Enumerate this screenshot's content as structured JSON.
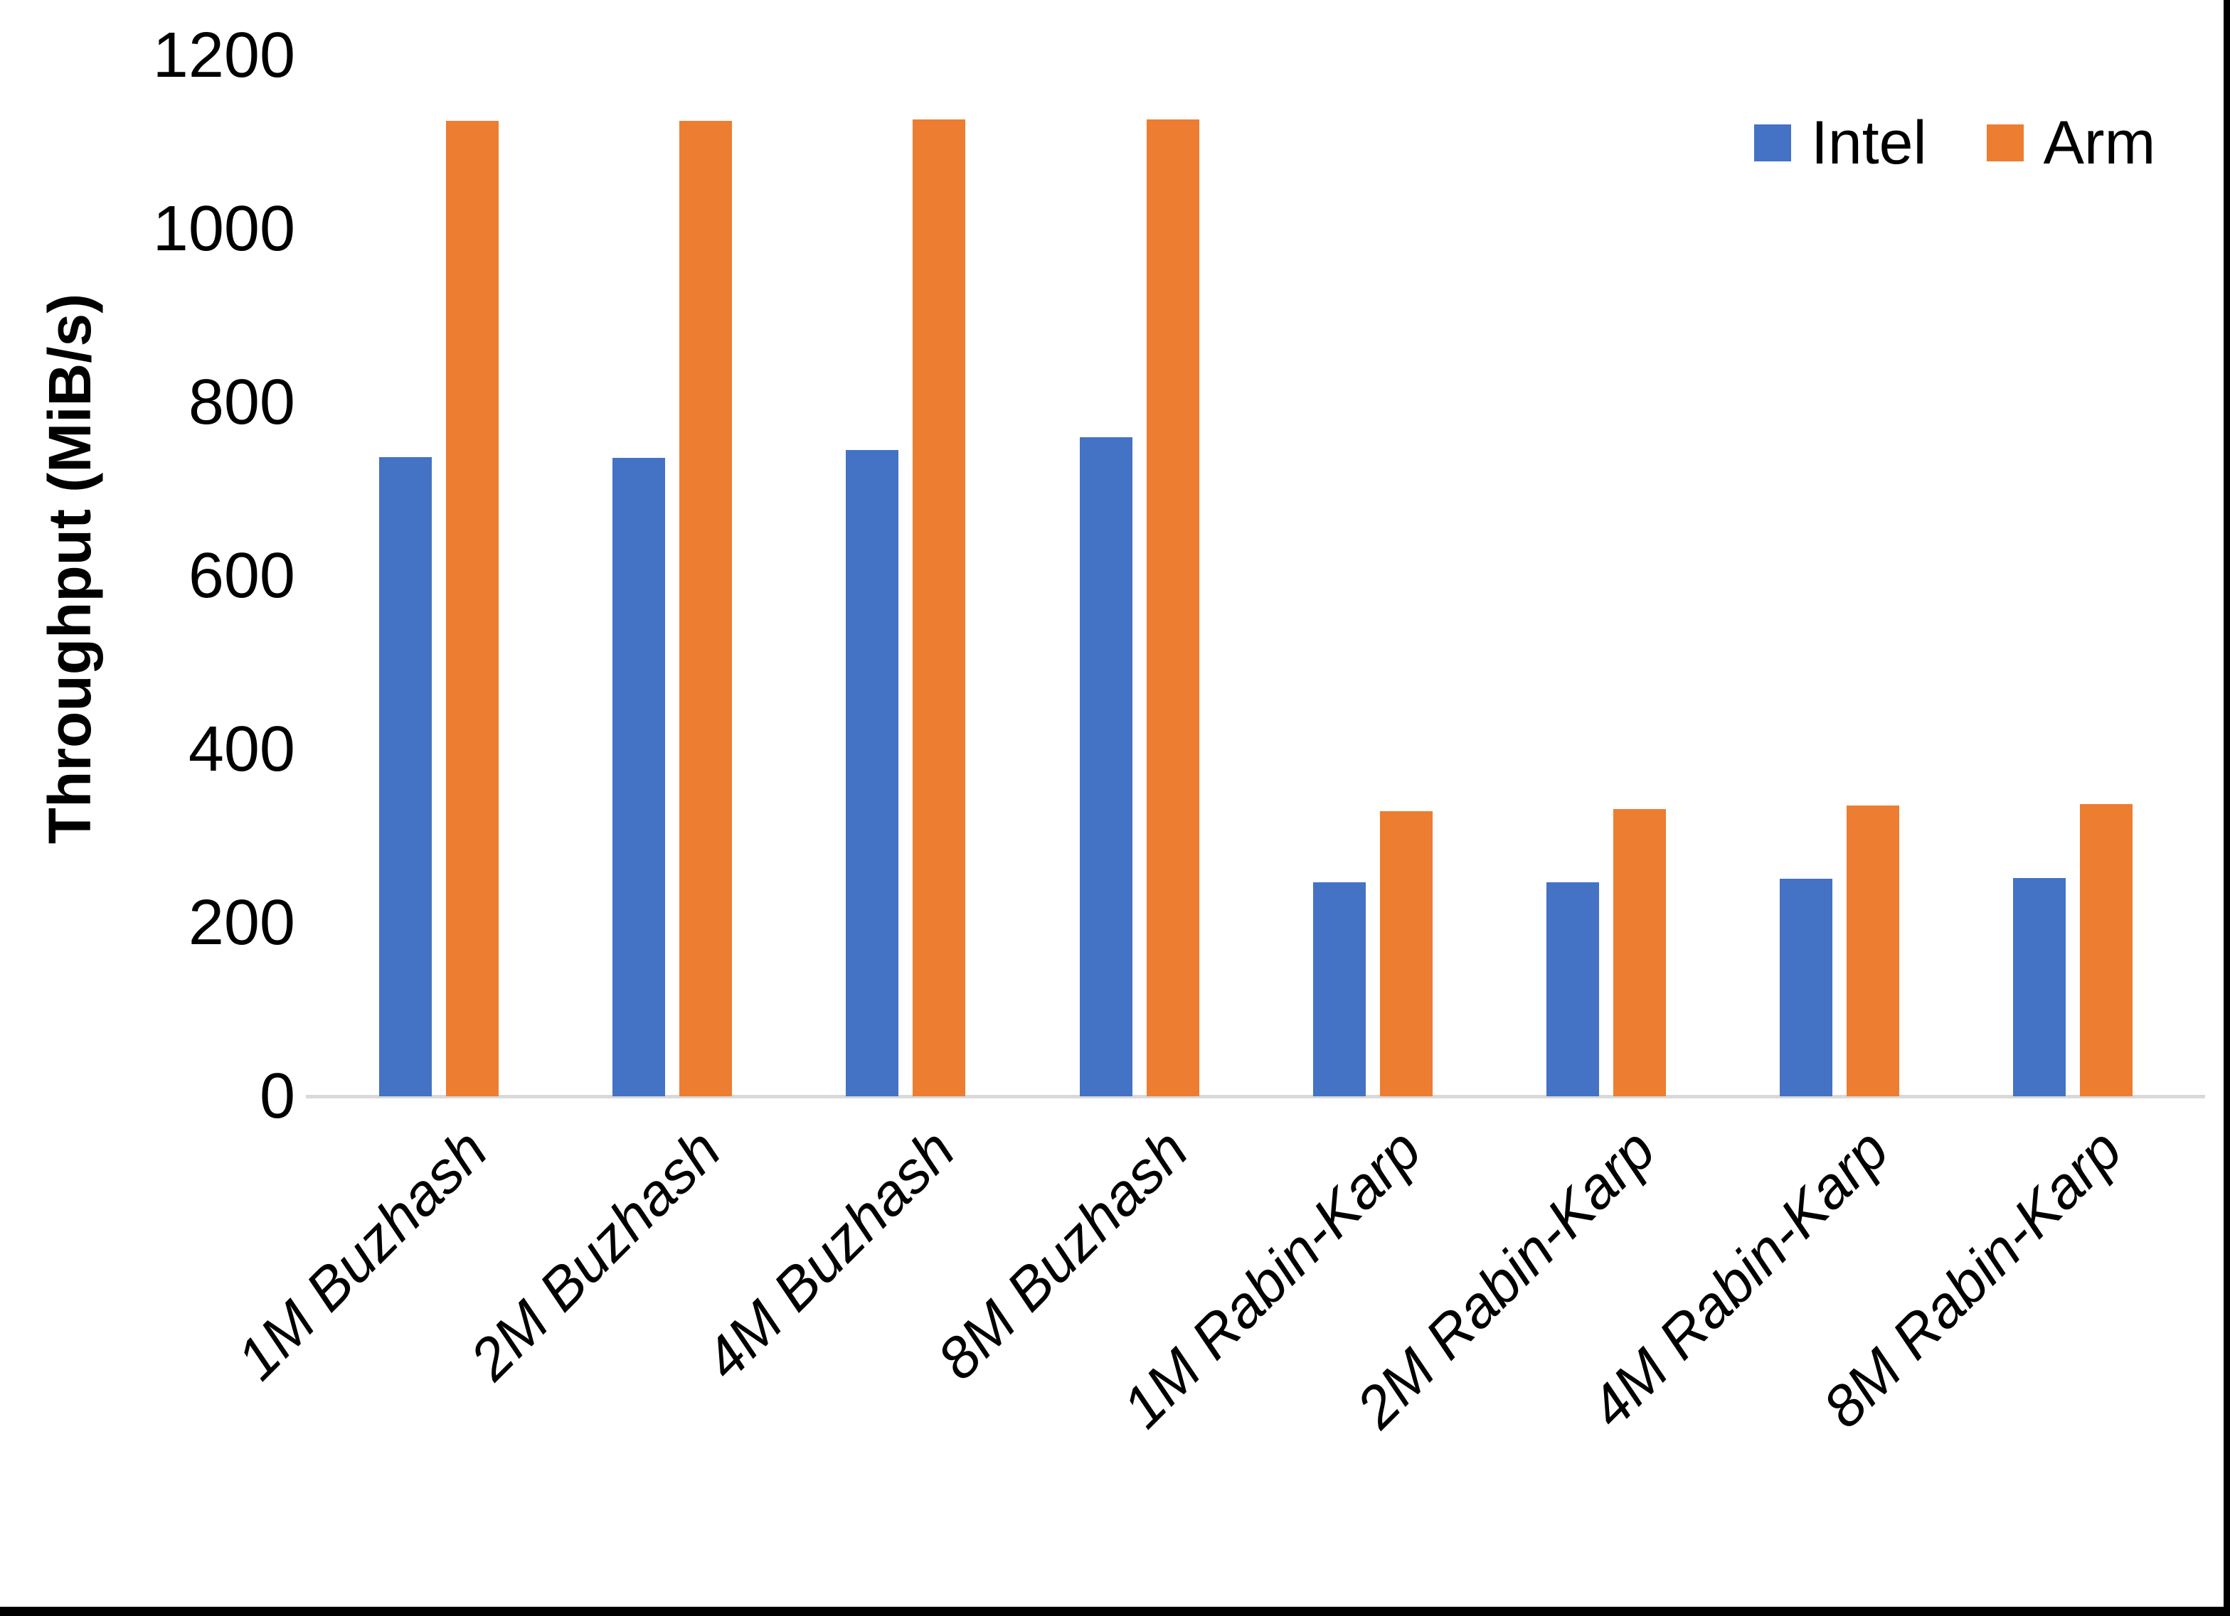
{
  "chart_data": {
    "type": "bar",
    "title": "",
    "xlabel": "",
    "ylabel": "Throughput (MiB/s)",
    "categories": [
      "1M Buzhash",
      "2M Buzhash",
      "4M Buzhash",
      "8M Buzhash",
      "1M Rabin-Karp",
      "2M Rabin-Karp",
      "4M Rabin-Karp",
      "8M Rabin-Karp"
    ],
    "series": [
      {
        "name": "Intel",
        "color": "#4472C4",
        "values": [
          737,
          736,
          745,
          760,
          247,
          247,
          251,
          252
        ]
      },
      {
        "name": "Arm",
        "color": "#ED7D31",
        "values": [
          1125,
          1125,
          1126,
          1126,
          329,
          331,
          335,
          337
        ]
      }
    ],
    "ylim": [
      0,
      1200
    ],
    "yticks": [
      0,
      200,
      400,
      600,
      800,
      1000,
      1200
    ],
    "grid": false,
    "legend_position": "top-right",
    "axis_line_color": "#D9D9D9",
    "text_color": "#000000"
  },
  "frame": {
    "right_border_color": "#000000",
    "bottom_border_color": "#000000"
  }
}
